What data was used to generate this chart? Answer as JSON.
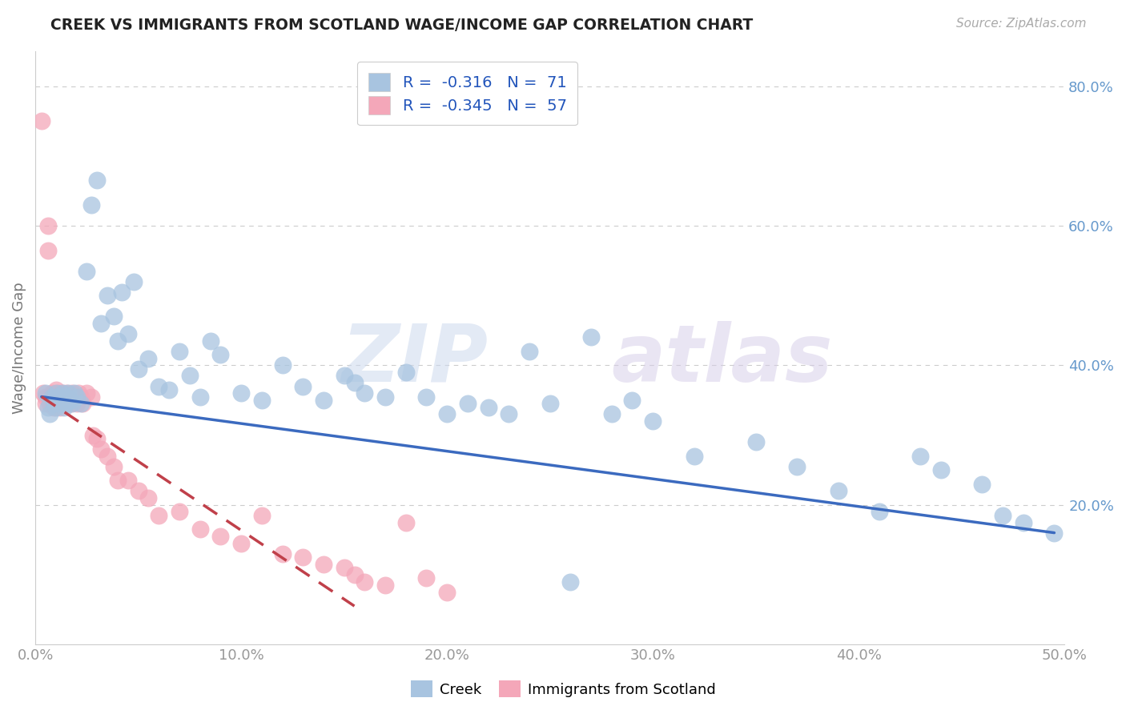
{
  "title": "CREEK VS IMMIGRANTS FROM SCOTLAND WAGE/INCOME GAP CORRELATION CHART",
  "source": "Source: ZipAtlas.com",
  "ylabel": "Wage/Income Gap",
  "xlim": [
    0.0,
    0.5
  ],
  "ylim": [
    0.0,
    0.85
  ],
  "xticks": [
    0.0,
    0.1,
    0.2,
    0.3,
    0.4,
    0.5
  ],
  "xtick_labels": [
    "0.0%",
    "10.0%",
    "20.0%",
    "30.0%",
    "40.0%",
    "50.0%"
  ],
  "yticks": [
    0.2,
    0.4,
    0.6,
    0.8
  ],
  "ytick_labels": [
    "20.0%",
    "40.0%",
    "60.0%",
    "80.0%"
  ],
  "legend_labels": [
    "Creek",
    "Immigrants from Scotland"
  ],
  "creek_color": "#a8c4e0",
  "scotland_color": "#f4a7b9",
  "creek_line_color": "#3b6abf",
  "scotland_line_color": "#c0404a",
  "creek_R": "-0.316",
  "creek_N": "71",
  "scotland_R": "-0.345",
  "scotland_N": "57",
  "watermark_zip": "ZIP",
  "watermark_atlas": "atlas",
  "creek_scatter_x": [
    0.005,
    0.006,
    0.007,
    0.008,
    0.009,
    0.01,
    0.01,
    0.011,
    0.012,
    0.013,
    0.014,
    0.015,
    0.015,
    0.016,
    0.017,
    0.018,
    0.019,
    0.02,
    0.022,
    0.025,
    0.027,
    0.03,
    0.032,
    0.035,
    0.038,
    0.04,
    0.042,
    0.045,
    0.048,
    0.05,
    0.055,
    0.06,
    0.065,
    0.07,
    0.075,
    0.08,
    0.085,
    0.09,
    0.1,
    0.11,
    0.12,
    0.13,
    0.14,
    0.15,
    0.155,
    0.16,
    0.17,
    0.18,
    0.19,
    0.2,
    0.21,
    0.22,
    0.23,
    0.24,
    0.25,
    0.26,
    0.27,
    0.28,
    0.29,
    0.3,
    0.32,
    0.35,
    0.37,
    0.39,
    0.41,
    0.43,
    0.44,
    0.46,
    0.47,
    0.48,
    0.495
  ],
  "creek_scatter_y": [
    0.36,
    0.34,
    0.33,
    0.355,
    0.345,
    0.36,
    0.34,
    0.355,
    0.345,
    0.36,
    0.34,
    0.355,
    0.345,
    0.36,
    0.35,
    0.345,
    0.36,
    0.355,
    0.345,
    0.535,
    0.63,
    0.665,
    0.46,
    0.5,
    0.47,
    0.435,
    0.505,
    0.445,
    0.52,
    0.395,
    0.41,
    0.37,
    0.365,
    0.42,
    0.385,
    0.355,
    0.435,
    0.415,
    0.36,
    0.35,
    0.4,
    0.37,
    0.35,
    0.385,
    0.375,
    0.36,
    0.355,
    0.39,
    0.355,
    0.33,
    0.345,
    0.34,
    0.33,
    0.42,
    0.345,
    0.09,
    0.44,
    0.33,
    0.35,
    0.32,
    0.27,
    0.29,
    0.255,
    0.22,
    0.19,
    0.27,
    0.25,
    0.23,
    0.185,
    0.175,
    0.16
  ],
  "scotland_scatter_x": [
    0.003,
    0.004,
    0.005,
    0.005,
    0.006,
    0.006,
    0.007,
    0.007,
    0.008,
    0.008,
    0.009,
    0.009,
    0.01,
    0.01,
    0.011,
    0.011,
    0.012,
    0.012,
    0.013,
    0.014,
    0.015,
    0.015,
    0.016,
    0.017,
    0.018,
    0.019,
    0.02,
    0.021,
    0.022,
    0.023,
    0.025,
    0.027,
    0.028,
    0.03,
    0.032,
    0.035,
    0.038,
    0.04,
    0.045,
    0.05,
    0.055,
    0.06,
    0.07,
    0.08,
    0.09,
    0.1,
    0.11,
    0.12,
    0.13,
    0.14,
    0.15,
    0.155,
    0.16,
    0.17,
    0.18,
    0.19,
    0.2
  ],
  "scotland_scatter_y": [
    0.75,
    0.36,
    0.355,
    0.345,
    0.6,
    0.565,
    0.355,
    0.345,
    0.36,
    0.345,
    0.355,
    0.34,
    0.365,
    0.345,
    0.36,
    0.345,
    0.355,
    0.34,
    0.36,
    0.355,
    0.345,
    0.36,
    0.35,
    0.345,
    0.36,
    0.355,
    0.345,
    0.36,
    0.355,
    0.345,
    0.36,
    0.355,
    0.3,
    0.295,
    0.28,
    0.27,
    0.255,
    0.235,
    0.235,
    0.22,
    0.21,
    0.185,
    0.19,
    0.165,
    0.155,
    0.145,
    0.185,
    0.13,
    0.125,
    0.115,
    0.11,
    0.1,
    0.09,
    0.085,
    0.175,
    0.095,
    0.075
  ],
  "creek_line_x": [
    0.003,
    0.495
  ],
  "creek_line_y": [
    0.355,
    0.16
  ],
  "scotland_line_x": [
    0.003,
    0.155
  ],
  "scotland_line_y": [
    0.355,
    0.055
  ]
}
